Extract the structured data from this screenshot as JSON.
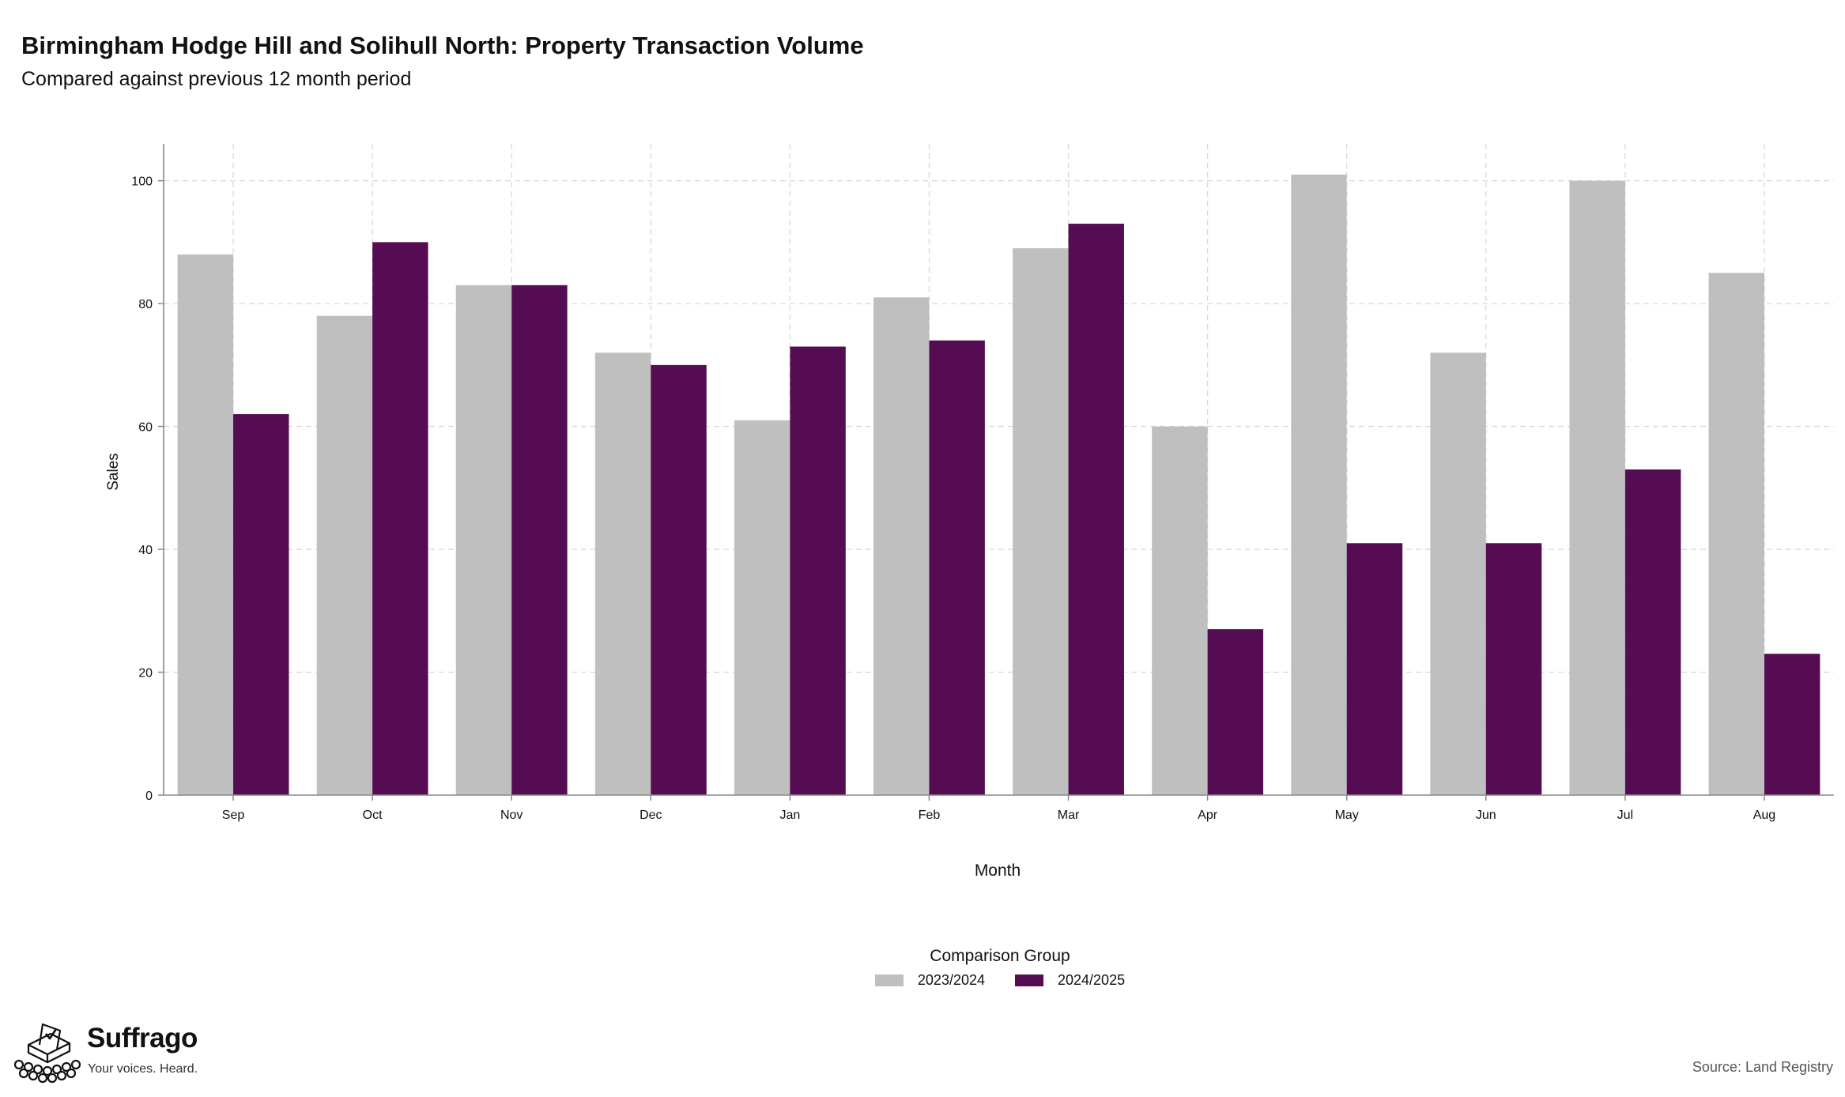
{
  "header": {
    "title": "Birmingham Hodge Hill and Solihull North: Property Transaction Volume",
    "subtitle": "Compared against previous 12 month period"
  },
  "legend": {
    "title": "Comparison Group"
  },
  "brand": {
    "name": "Suffrago",
    "tagline": "Your voices. Heard.",
    "logo_icon": "ballot-box-with-crowd-icon"
  },
  "footer": {
    "source": "Source: Land Registry"
  },
  "chart_data": {
    "type": "bar",
    "title": "Birmingham Hodge Hill and Solihull North: Property Transaction Volume",
    "subtitle": "Compared against previous 12 month period",
    "xlabel": "Month",
    "ylabel": "Sales",
    "ylim": [
      0,
      106
    ],
    "yticks": [
      0,
      20,
      40,
      60,
      80,
      100
    ],
    "grid": true,
    "legend_position": "bottom",
    "categories": [
      "Sep",
      "Oct",
      "Nov",
      "Dec",
      "Jan",
      "Feb",
      "Mar",
      "Apr",
      "May",
      "Jun",
      "Jul",
      "Aug"
    ],
    "series": [
      {
        "name": "2023/2024",
        "color": "#bfbfbf",
        "values": [
          88,
          78,
          83,
          72,
          61,
          81,
          89,
          60,
          101,
          72,
          100,
          85
        ]
      },
      {
        "name": "2024/2025",
        "color": "#550c52",
        "values": [
          62,
          90,
          83,
          70,
          73,
          74,
          93,
          27,
          41,
          41,
          53,
          23
        ]
      }
    ]
  }
}
